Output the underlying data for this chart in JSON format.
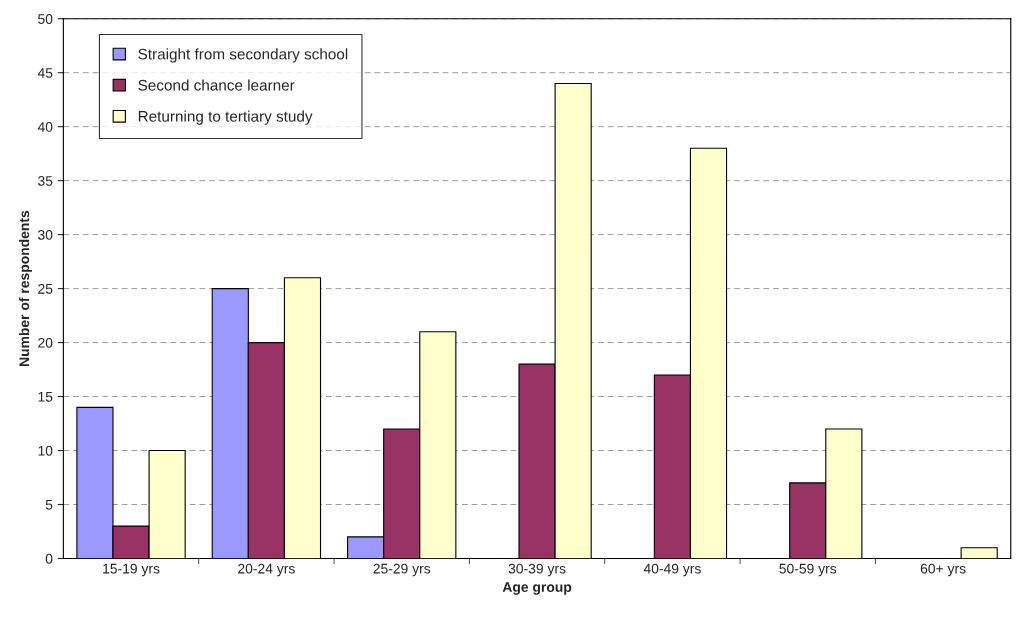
{
  "chart_data": {
    "type": "bar",
    "xlabel": "Age group",
    "ylabel": "Number of respondents",
    "categories": [
      "15-19 yrs",
      "20-24 yrs",
      "25-29 yrs",
      "30-39 yrs",
      "40-49 yrs",
      "50-59 yrs",
      "60+ yrs"
    ],
    "series": [
      {
        "name": "Straight from secondary school",
        "color": "#9999ff",
        "values": [
          14,
          25,
          2,
          0,
          0,
          0,
          0
        ]
      },
      {
        "name": "Second chance learner",
        "color": "#993366",
        "values": [
          3,
          20,
          12,
          18,
          17,
          7,
          0
        ]
      },
      {
        "name": "Returning to tertiary study",
        "color": "#ffffcc",
        "values": [
          10,
          26,
          21,
          44,
          38,
          12,
          1
        ]
      }
    ],
    "ylim": [
      0,
      50
    ],
    "yticks": [
      0,
      5,
      10,
      15,
      20,
      25,
      30,
      35,
      40,
      45,
      50
    ],
    "grid": "y",
    "legend": "top left"
  }
}
